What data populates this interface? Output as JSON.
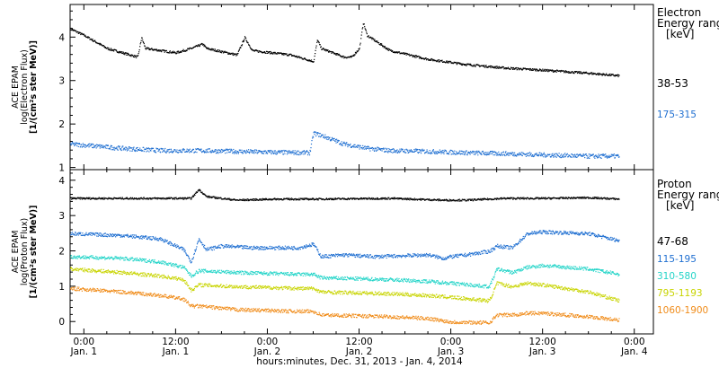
{
  "xlabel": "hours:minutes, Dec. 31, 2013 - Jan. 4, 2014",
  "x_ticks": [
    {
      "t": 0,
      "time": "0:00",
      "date": "Jan. 1"
    },
    {
      "t": 12,
      "time": "12:00",
      "date": "Jan. 1"
    },
    {
      "t": 24,
      "time": "0:00",
      "date": "Jan. 2"
    },
    {
      "t": 36,
      "time": "12:00",
      "date": "Jan. 2"
    },
    {
      "t": 48,
      "time": "0:00",
      "date": "Jan. 3"
    },
    {
      "t": 60,
      "time": "12:00",
      "date": "Jan. 3"
    },
    {
      "t": 72,
      "time": "0:00",
      "date": "Jan. 4"
    }
  ],
  "chart_data": [
    {
      "type": "scatter",
      "panel": "electron",
      "ylabel_lines": [
        "ACE EPAM",
        "log(Electron Flux)",
        "[1/(cm²s ster MeV)]"
      ],
      "ylim": [
        0.95,
        4.75
      ],
      "yticks": [
        1,
        2,
        3,
        4
      ],
      "xlim": [
        -1.8,
        74.5
      ],
      "legend_title": [
        "Electron",
        "Energy range",
        "[keV]"
      ],
      "series": [
        {
          "name": "38-53",
          "color": "#000000",
          "x": [
            -1.8,
            0,
            3,
            7,
            7.5,
            8,
            10,
            12,
            14,
            15.5,
            16,
            20,
            21,
            22,
            27,
            30,
            30.5,
            31,
            34,
            35,
            36,
            36.5,
            37,
            40,
            45,
            50,
            55,
            60,
            66,
            70
          ],
          "y": [
            4.2,
            4.05,
            3.75,
            3.55,
            4.0,
            3.75,
            3.7,
            3.65,
            3.75,
            3.85,
            3.75,
            3.6,
            4.0,
            3.7,
            3.6,
            3.45,
            3.95,
            3.75,
            3.55,
            3.55,
            3.75,
            4.35,
            4.05,
            3.7,
            3.5,
            3.38,
            3.3,
            3.25,
            3.18,
            3.12
          ]
        },
        {
          "name": "175-315",
          "color": "#1f6fd1",
          "x": [
            -1.8,
            5,
            10,
            15,
            20,
            25,
            29.5,
            30,
            31,
            34,
            37,
            40,
            45,
            50,
            55,
            60,
            66,
            70
          ],
          "y": [
            1.55,
            1.45,
            1.4,
            1.4,
            1.38,
            1.36,
            1.35,
            1.8,
            1.75,
            1.55,
            1.45,
            1.4,
            1.38,
            1.35,
            1.33,
            1.3,
            1.27,
            1.27
          ]
        }
      ]
    },
    {
      "type": "scatter",
      "panel": "proton",
      "ylabel_lines": [
        "ACE EPAM",
        "log(Proton Flux)",
        "[1/(cm²s ster MeV)]"
      ],
      "ylim": [
        -0.35,
        4.3
      ],
      "yticks": [
        0,
        1,
        2,
        3,
        4
      ],
      "xlim": [
        -1.8,
        74.5
      ],
      "legend_title": [
        "Proton",
        "Energy range",
        "[keV]"
      ],
      "series": [
        {
          "name": "47-68",
          "color": "#000000",
          "x": [
            -1.8,
            10,
            14,
            15,
            16,
            20,
            25,
            30,
            40,
            47,
            48,
            49,
            50,
            55,
            60,
            66,
            70
          ],
          "y": [
            3.5,
            3.5,
            3.5,
            3.75,
            3.55,
            3.45,
            3.48,
            3.48,
            3.5,
            3.45,
            3.45,
            3.45,
            3.45,
            3.5,
            3.5,
            3.52,
            3.48
          ]
        },
        {
          "name": "115-195",
          "color": "#1f6fd1",
          "x": [
            -1.8,
            5,
            10,
            13,
            14,
            15,
            16,
            18,
            22,
            28,
            30,
            31,
            34,
            38,
            45,
            47,
            48,
            50,
            53,
            54,
            56,
            58,
            60,
            66,
            70
          ],
          "y": [
            2.5,
            2.45,
            2.35,
            2.05,
            1.7,
            2.35,
            2.05,
            2.15,
            2.1,
            2.1,
            2.2,
            1.85,
            1.9,
            1.85,
            1.9,
            1.8,
            1.85,
            1.9,
            2.0,
            2.15,
            2.1,
            2.5,
            2.55,
            2.5,
            2.3
          ]
        },
        {
          "name": "310-580",
          "color": "#22d4c8",
          "x": [
            -1.8,
            5,
            10,
            13,
            14,
            15,
            20,
            28,
            30,
            31,
            40,
            45,
            48,
            53,
            54,
            56,
            58,
            60,
            66,
            70
          ],
          "y": [
            1.85,
            1.8,
            1.7,
            1.55,
            1.3,
            1.45,
            1.4,
            1.35,
            1.35,
            1.25,
            1.2,
            1.15,
            1.1,
            1.0,
            1.5,
            1.4,
            1.55,
            1.6,
            1.5,
            1.35
          ]
        },
        {
          "name": "795-1193",
          "color": "#c8d400",
          "x": [
            -1.8,
            5,
            10,
            13,
            14,
            15,
            20,
            28,
            30,
            31,
            40,
            45,
            48,
            53,
            54,
            56,
            58,
            60,
            66,
            70
          ],
          "y": [
            1.5,
            1.4,
            1.3,
            1.2,
            0.9,
            1.05,
            1.0,
            0.95,
            0.95,
            0.85,
            0.8,
            0.75,
            0.7,
            0.6,
            1.1,
            1.0,
            1.1,
            1.05,
            0.85,
            0.6
          ]
        },
        {
          "name": "1060-1900",
          "color": "#f08c1a",
          "x": [
            -1.8,
            5,
            10,
            13,
            14,
            15,
            20,
            28,
            30,
            31,
            40,
            45,
            48,
            53,
            54,
            56,
            58,
            60,
            66,
            70
          ],
          "y": [
            0.95,
            0.85,
            0.75,
            0.65,
            0.45,
            0.45,
            0.35,
            0.3,
            0.3,
            0.2,
            0.15,
            0.1,
            0.0,
            -0.02,
            0.2,
            0.2,
            0.25,
            0.25,
            0.15,
            0.05
          ]
        }
      ]
    }
  ]
}
